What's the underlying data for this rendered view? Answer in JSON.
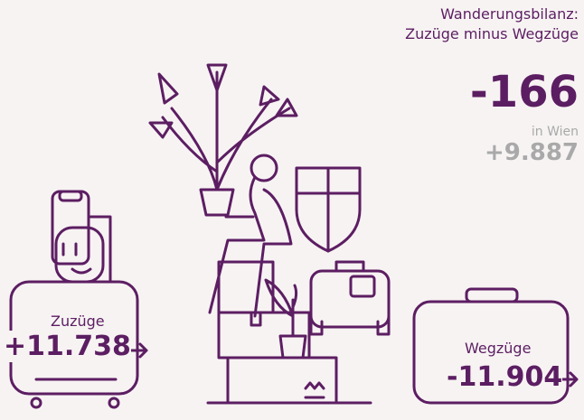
{
  "header": {
    "title_line1": "Wanderungsbilanz:",
    "title_line2": "Zuzüge minus Wegzüge"
  },
  "balance": {
    "value": "-166",
    "vienna_label": "in Wien",
    "vienna_value": "+9.887"
  },
  "inflow": {
    "label": "Zuzüge",
    "value": "+11.738"
  },
  "outflow": {
    "label": "Wegzüge",
    "value": "-11.904"
  }
}
